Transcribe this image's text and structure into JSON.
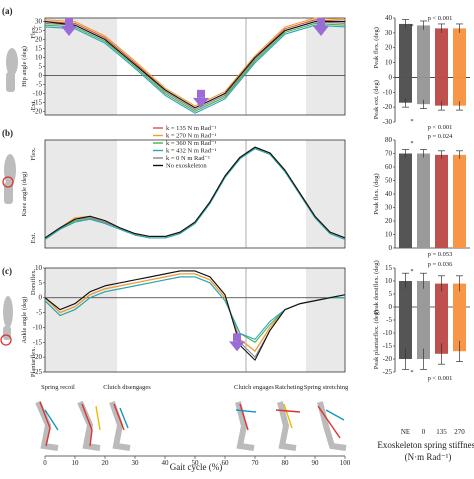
{
  "figure": {
    "panel_labels": [
      "(a)",
      "(b)",
      "(c)"
    ],
    "gait_axis_label": "Gait cycle (%)",
    "gait_ticks": [
      0,
      10,
      20,
      30,
      40,
      50,
      60,
      70,
      80,
      90,
      100
    ],
    "phase_labels": [
      "Spring recoil",
      "Clutch disengages",
      "Clutch engages",
      "Ratcheting",
      "Spring stretching"
    ],
    "bar_x_title": "Exoskeleton spring stiffness",
    "bar_x_units": "(N·m Rad⁻¹)",
    "colors": {
      "NE": "#555555",
      "k0": "#9a9a9a",
      "k135": "#c0504d",
      "k270": "#f79646"
    }
  },
  "chart_data": [
    {
      "id": "hip-angle",
      "type": "line",
      "panel": "(a)",
      "ylabel": "Hip angle (deg)",
      "ylabel_pos": "Flex.",
      "ylabel_neg": "Ext.",
      "ylim": [
        -22,
        32
      ],
      "yticks": [
        -20,
        -15,
        -10,
        -5,
        0,
        5,
        10,
        15,
        20,
        25,
        30
      ],
      "x": [
        0,
        10,
        20,
        30,
        40,
        50,
        60,
        70,
        80,
        90,
        100
      ],
      "shaded": [
        [
          0,
          24
        ],
        [
          87,
          100
        ]
      ],
      "vline": 67,
      "arrows": [
        8,
        52,
        92
      ],
      "series": [
        {
          "name": "k = 135 N m Rad⁻¹",
          "color": "#d9534f",
          "values": [
            30,
            29,
            21,
            7,
            -8,
            -18,
            -10,
            10,
            26,
            31,
            30
          ]
        },
        {
          "name": "k = 270 N m Rad⁻¹",
          "color": "#f0a030",
          "values": [
            31,
            30,
            22,
            8,
            -7,
            -17,
            -9,
            11,
            27,
            32,
            31
          ]
        },
        {
          "name": "k = 360 N m Rad⁻¹",
          "color": "#4caf50",
          "values": [
            28,
            27,
            19,
            5,
            -10,
            -20,
            -12,
            8,
            24,
            29,
            28
          ]
        },
        {
          "name": "k = 432 N m Rad⁻¹",
          "color": "#2aa7b8",
          "values": [
            27,
            26,
            18,
            4,
            -11,
            -21,
            -13,
            7,
            23,
            28,
            27
          ]
        },
        {
          "name": "k = 0 N m Rad⁻¹",
          "color": "#888888",
          "values": [
            29,
            28,
            20,
            6,
            -9,
            -19,
            -11,
            9,
            25,
            30,
            29
          ]
        },
        {
          "name": "No exoskeleton",
          "color": "#111111",
          "values": [
            30,
            28,
            20,
            6,
            -8,
            -18,
            -10,
            10,
            25,
            30,
            30
          ]
        }
      ]
    },
    {
      "id": "knee-angle",
      "type": "line",
      "panel": "(b)",
      "ylabel": "Knee angle (deg)",
      "ylabel_pos": "Flex.",
      "ylabel_neg": "Ext.",
      "ylim": [
        0,
        75
      ],
      "x": [
        0,
        5,
        10,
        15,
        20,
        25,
        30,
        35,
        40,
        45,
        50,
        55,
        60,
        65,
        70,
        75,
        80,
        85,
        90,
        95,
        100
      ],
      "shaded": [
        [
          0,
          24
        ],
        [
          87,
          100
        ]
      ],
      "vline": 67,
      "series": [
        {
          "name": "k = 135 N m Rad⁻¹",
          "color": "#d9534f",
          "values": [
            7,
            14,
            20,
            21,
            18,
            14,
            10,
            8,
            8,
            11,
            18,
            32,
            50,
            63,
            70,
            66,
            54,
            38,
            22,
            11,
            7
          ]
        },
        {
          "name": "k = 270 N m Rad⁻¹",
          "color": "#f0a030",
          "values": [
            7,
            14,
            21,
            22,
            19,
            14,
            10,
            8,
            8,
            11,
            18,
            32,
            50,
            63,
            70,
            66,
            54,
            38,
            22,
            11,
            7
          ]
        },
        {
          "name": "k = 360 N m Rad⁻¹",
          "color": "#4caf50",
          "values": [
            6,
            13,
            19,
            20,
            17,
            13,
            9,
            7,
            7,
            10,
            17,
            31,
            49,
            62,
            69,
            65,
            53,
            37,
            21,
            10,
            6
          ]
        },
        {
          "name": "k = 432 N m Rad⁻¹",
          "color": "#2aa7b8",
          "values": [
            6,
            13,
            18,
            20,
            17,
            13,
            9,
            7,
            7,
            10,
            17,
            31,
            49,
            62,
            69,
            65,
            53,
            37,
            21,
            10,
            6
          ]
        },
        {
          "name": "k = 0 N m Rad⁻¹",
          "color": "#888888",
          "values": [
            7,
            14,
            20,
            21,
            18,
            14,
            10,
            8,
            8,
            11,
            18,
            32,
            50,
            63,
            70,
            66,
            54,
            38,
            22,
            11,
            7
          ]
        },
        {
          "name": "No exoskeleton",
          "color": "#111111",
          "values": [
            7,
            14,
            20,
            22,
            19,
            14,
            10,
            8,
            8,
            11,
            18,
            32,
            50,
            63,
            70,
            66,
            54,
            38,
            22,
            11,
            7
          ]
        }
      ]
    },
    {
      "id": "ankle-angle",
      "type": "line",
      "panel": "(c)",
      "ylabel": "Ankle angle (deg)",
      "ylabel_pos": "Dorsiflex.",
      "ylabel_neg": "Plantarflex.",
      "ylim": [
        -25,
        10
      ],
      "yticks": [
        -25,
        -20,
        -15,
        -10,
        -5,
        0,
        5,
        10
      ],
      "x": [
        0,
        5,
        10,
        15,
        20,
        25,
        30,
        35,
        40,
        45,
        50,
        55,
        60,
        65,
        70,
        75,
        80,
        85,
        90,
        95,
        100
      ],
      "shaded": [
        [
          0,
          24
        ],
        [
          87,
          100
        ]
      ],
      "vline": 67,
      "arrows": [
        64
      ],
      "series": [
        {
          "name": "k = 135 N m Rad⁻¹",
          "color": "#d9534f",
          "values": [
            0,
            -5,
            -3,
            1,
            3,
            4,
            5,
            6,
            7,
            8,
            8,
            6,
            0,
            -14,
            -18,
            -10,
            -4,
            -2,
            -1,
            0,
            1
          ]
        },
        {
          "name": "k = 270 N m Rad⁻¹",
          "color": "#f0a030",
          "values": [
            0,
            -5,
            -3,
            1,
            3,
            4,
            5,
            6,
            7,
            8,
            8,
            6,
            0,
            -14,
            -18,
            -10,
            -4,
            -2,
            -1,
            0,
            1
          ]
        },
        {
          "name": "k = 360 N m Rad⁻¹",
          "color": "#4caf50",
          "values": [
            -1,
            -6,
            -4,
            0,
            2,
            3,
            4,
            5,
            6,
            7,
            7,
            5,
            -1,
            -12,
            -15,
            -9,
            -4,
            -2,
            -1,
            0,
            0
          ]
        },
        {
          "name": "k = 432 N m Rad⁻¹",
          "color": "#2aa7b8",
          "values": [
            -1,
            -6,
            -4,
            0,
            2,
            3,
            4,
            5,
            6,
            7,
            7,
            5,
            -1,
            -12,
            -14,
            -8,
            -4,
            -2,
            -1,
            0,
            0
          ]
        },
        {
          "name": "k = 0 N m Rad⁻¹",
          "color": "#888888",
          "values": [
            0,
            -4,
            -2,
            2,
            4,
            5,
            6,
            7,
            8,
            9,
            9,
            7,
            1,
            -15,
            -20,
            -11,
            -4,
            -2,
            -1,
            0,
            1
          ]
        },
        {
          "name": "No exoskeleton",
          "color": "#111111",
          "values": [
            0,
            -4,
            -2,
            2,
            4,
            5,
            6,
            7,
            8,
            9,
            9,
            7,
            1,
            -16,
            -21,
            -11,
            -4,
            -2,
            -1,
            0,
            1
          ]
        }
      ]
    },
    {
      "id": "hip-bars",
      "type": "bar",
      "categories": [
        "NE",
        "0",
        "135",
        "270"
      ],
      "top_ylabel": "Peak flex. (deg)",
      "bottom_ylabel": "Peak ext. (deg)",
      "ylim": [
        -30,
        40
      ],
      "yticks": [
        -30,
        -20,
        -10,
        0,
        10,
        20,
        30,
        40
      ],
      "pos_values": [
        36,
        35,
        33,
        33
      ],
      "pos_errors": [
        3,
        3,
        3,
        3
      ],
      "neg_values": [
        -17,
        -18,
        -19,
        -19
      ],
      "neg_errors": [
        3,
        3,
        3,
        3
      ],
      "annotations": [
        "p < 0.001",
        "*",
        "p < 0.001",
        "*"
      ]
    },
    {
      "id": "knee-bars",
      "type": "bar",
      "categories": [
        "NE",
        "0",
        "135",
        "270"
      ],
      "top_ylabel": "Peak flex. (deg)",
      "bottom_ylabel": "Peak ext. (deg)",
      "ylim": [
        0,
        80
      ],
      "yticks": [
        0,
        10,
        20,
        30,
        40,
        50,
        60,
        70,
        80
      ],
      "pos_values": [
        70,
        70,
        69,
        69
      ],
      "pos_errors": [
        3,
        3,
        3,
        3
      ],
      "annotations": [
        "p = 0.024",
        "*",
        "p = 0.053"
      ]
    },
    {
      "id": "ankle-bars",
      "type": "bar",
      "categories": [
        "NE",
        "0",
        "135",
        "270"
      ],
      "top_ylabel": "Peak dorsiflex. (deg)",
      "bottom_ylabel": "Peak plantarflex. (deg)",
      "ylim": [
        -25,
        15
      ],
      "yticks": [
        -25,
        -20,
        -15,
        -10,
        -5,
        0,
        5,
        10,
        15
      ],
      "pos_values": [
        10,
        10,
        9,
        9
      ],
      "pos_errors": [
        3,
        3,
        3,
        3
      ],
      "neg_values": [
        -20,
        -20,
        -18,
        -17
      ],
      "neg_errors": [
        4,
        4,
        4,
        4
      ],
      "annotations": [
        "p = 0.036",
        "*",
        "*",
        "p < 0.001"
      ]
    }
  ]
}
